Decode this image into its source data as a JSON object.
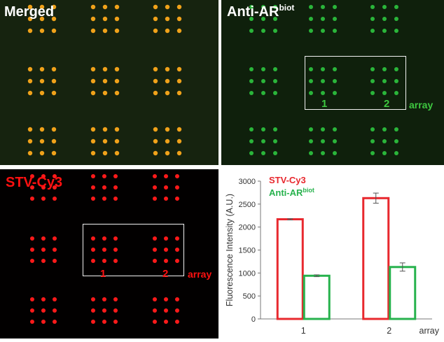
{
  "panels": {
    "merged": {
      "label": "Merged",
      "colors": {
        "background": "#16230f",
        "spot": "#f0a21a"
      }
    },
    "anti": {
      "label": "Anti-AR",
      "label_sup": "biot",
      "colors": {
        "background": "#0f200c",
        "spot": "#2ab53a",
        "text": "#3ec840"
      }
    },
    "stv": {
      "label": "STV-Cy3",
      "colors": {
        "background": "#020000",
        "spot": "#ff1a1a",
        "text": "#ff1010"
      }
    }
  },
  "roi": {
    "label_1": "1",
    "label_2": "2",
    "array_word": "array"
  },
  "chart_data": {
    "type": "bar",
    "categories": [
      "1",
      "2"
    ],
    "xlabel": "array",
    "ylabel": "Fluorescence Intensity (A.U.)",
    "ylim": [
      0,
      3000
    ],
    "yticks": [
      0,
      500,
      1000,
      1500,
      2000,
      2500,
      3000
    ],
    "grid": false,
    "legend_position": "top-left",
    "series": [
      {
        "name": "STV-Cy3",
        "values": [
          2170,
          2630
        ],
        "errors": [
          15,
          110
        ],
        "color": "#e8282e"
      },
      {
        "name": "Anti-AR",
        "name_sup": "biot",
        "values": [
          940,
          1130
        ],
        "errors": [
          20,
          90
        ],
        "color": "#27b24d"
      }
    ]
  }
}
